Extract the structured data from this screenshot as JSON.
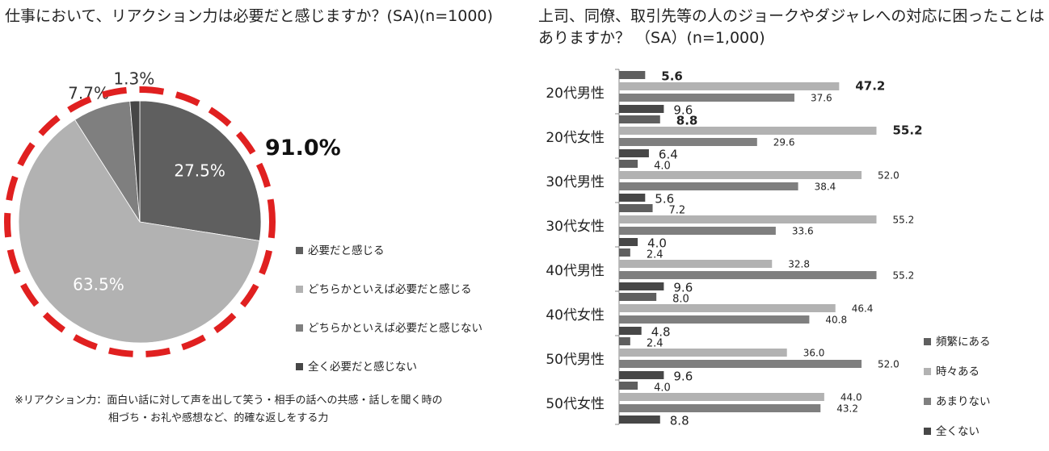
{
  "colors": {
    "often": "#5f5f5f",
    "sometimes": "#b2b2b2",
    "rarely": "#7f7f7f",
    "never": "#474747",
    "ring": "#e02020",
    "white": "#ffffff"
  },
  "left": {
    "title": "仕事において、リアクション力は必要だと感じますか？(SA)(n=1000)",
    "highlight": "91.0%",
    "note_line1": "※リアクション力：面白い話に対して声を出して笑う・相手の話への共感・話しを聞く時の",
    "note_line2": "相づち・お礼や感想など、的確な返しをする力"
  },
  "right": {
    "title_line1": "上司、同僚、取引先等の人のジョークやダジャレへの対応に困ったことは",
    "title_line2": "ありますか？ （SA）(n=1,000)"
  },
  "chart_data": [
    {
      "type": "pie",
      "title": "仕事において、リアクション力は必要だと感じますか？(SA)(n=1000)",
      "slices": [
        {
          "label": "必要だと感じる",
          "value": 27.5,
          "value_label": "27.5%",
          "color": "#5f5f5f"
        },
        {
          "label": "どちらかといえば必要だと感じる",
          "value": 63.5,
          "value_label": "63.5%",
          "color": "#b2b2b2"
        },
        {
          "label": "どちらかといえば必要だと感じない",
          "value": 7.7,
          "value_label": "7.7%",
          "color": "#7f7f7f"
        },
        {
          "label": "全く必要だと感じない",
          "value": 1.3,
          "value_label": "1.3%",
          "color": "#474747"
        }
      ],
      "legend_position": "right",
      "annotation": "91.0%"
    },
    {
      "type": "bar",
      "orientation": "horizontal",
      "title": "上司、同僚、取引先等の人のジョークやダジャレへの対応に困ったことはありますか？ （SA）(n=1,000)",
      "categories": [
        "20代男性",
        "20代女性",
        "30代男性",
        "30代女性",
        "40代男性",
        "40代女性",
        "50代男性",
        "50代女性"
      ],
      "series": [
        {
          "name": "頻繁にある",
          "color": "#5f5f5f",
          "values": [
            5.6,
            8.8,
            4.0,
            7.2,
            2.4,
            8.0,
            2.4,
            4.0
          ],
          "labels": [
            "5.6",
            "8.8",
            "4.0",
            "7.2",
            "2.4",
            "8.0",
            "2.4",
            "4.0"
          ]
        },
        {
          "name": "時々ある",
          "color": "#b2b2b2",
          "values": [
            47.2,
            55.2,
            52.0,
            55.2,
            32.8,
            46.4,
            36.0,
            44.0
          ],
          "labels": [
            "47.2",
            "55.2",
            "52.0",
            "55.2",
            "32.8",
            "46.4",
            "36.0",
            "44.0"
          ]
        },
        {
          "name": "あまりない",
          "color": "#7f7f7f",
          "values": [
            37.6,
            29.6,
            38.4,
            33.6,
            55.2,
            40.8,
            52.0,
            43.2
          ],
          "labels": [
            "37.6",
            "29.6",
            "38.4",
            "33.6",
            "55.2",
            "40.8",
            "52.0",
            "43.2"
          ]
        },
        {
          "name": "全くない",
          "color": "#474747",
          "values": [
            9.6,
            6.4,
            5.6,
            4.0,
            9.6,
            4.8,
            9.6,
            8.8
          ],
          "labels": [
            "9.6",
            "6.4",
            "5.6",
            "4.0",
            "9.6",
            "4.8",
            "9.6",
            "8.8"
          ]
        }
      ],
      "xlim": [
        0,
        60
      ],
      "legend_position": "bottom-right",
      "grid": false
    }
  ]
}
